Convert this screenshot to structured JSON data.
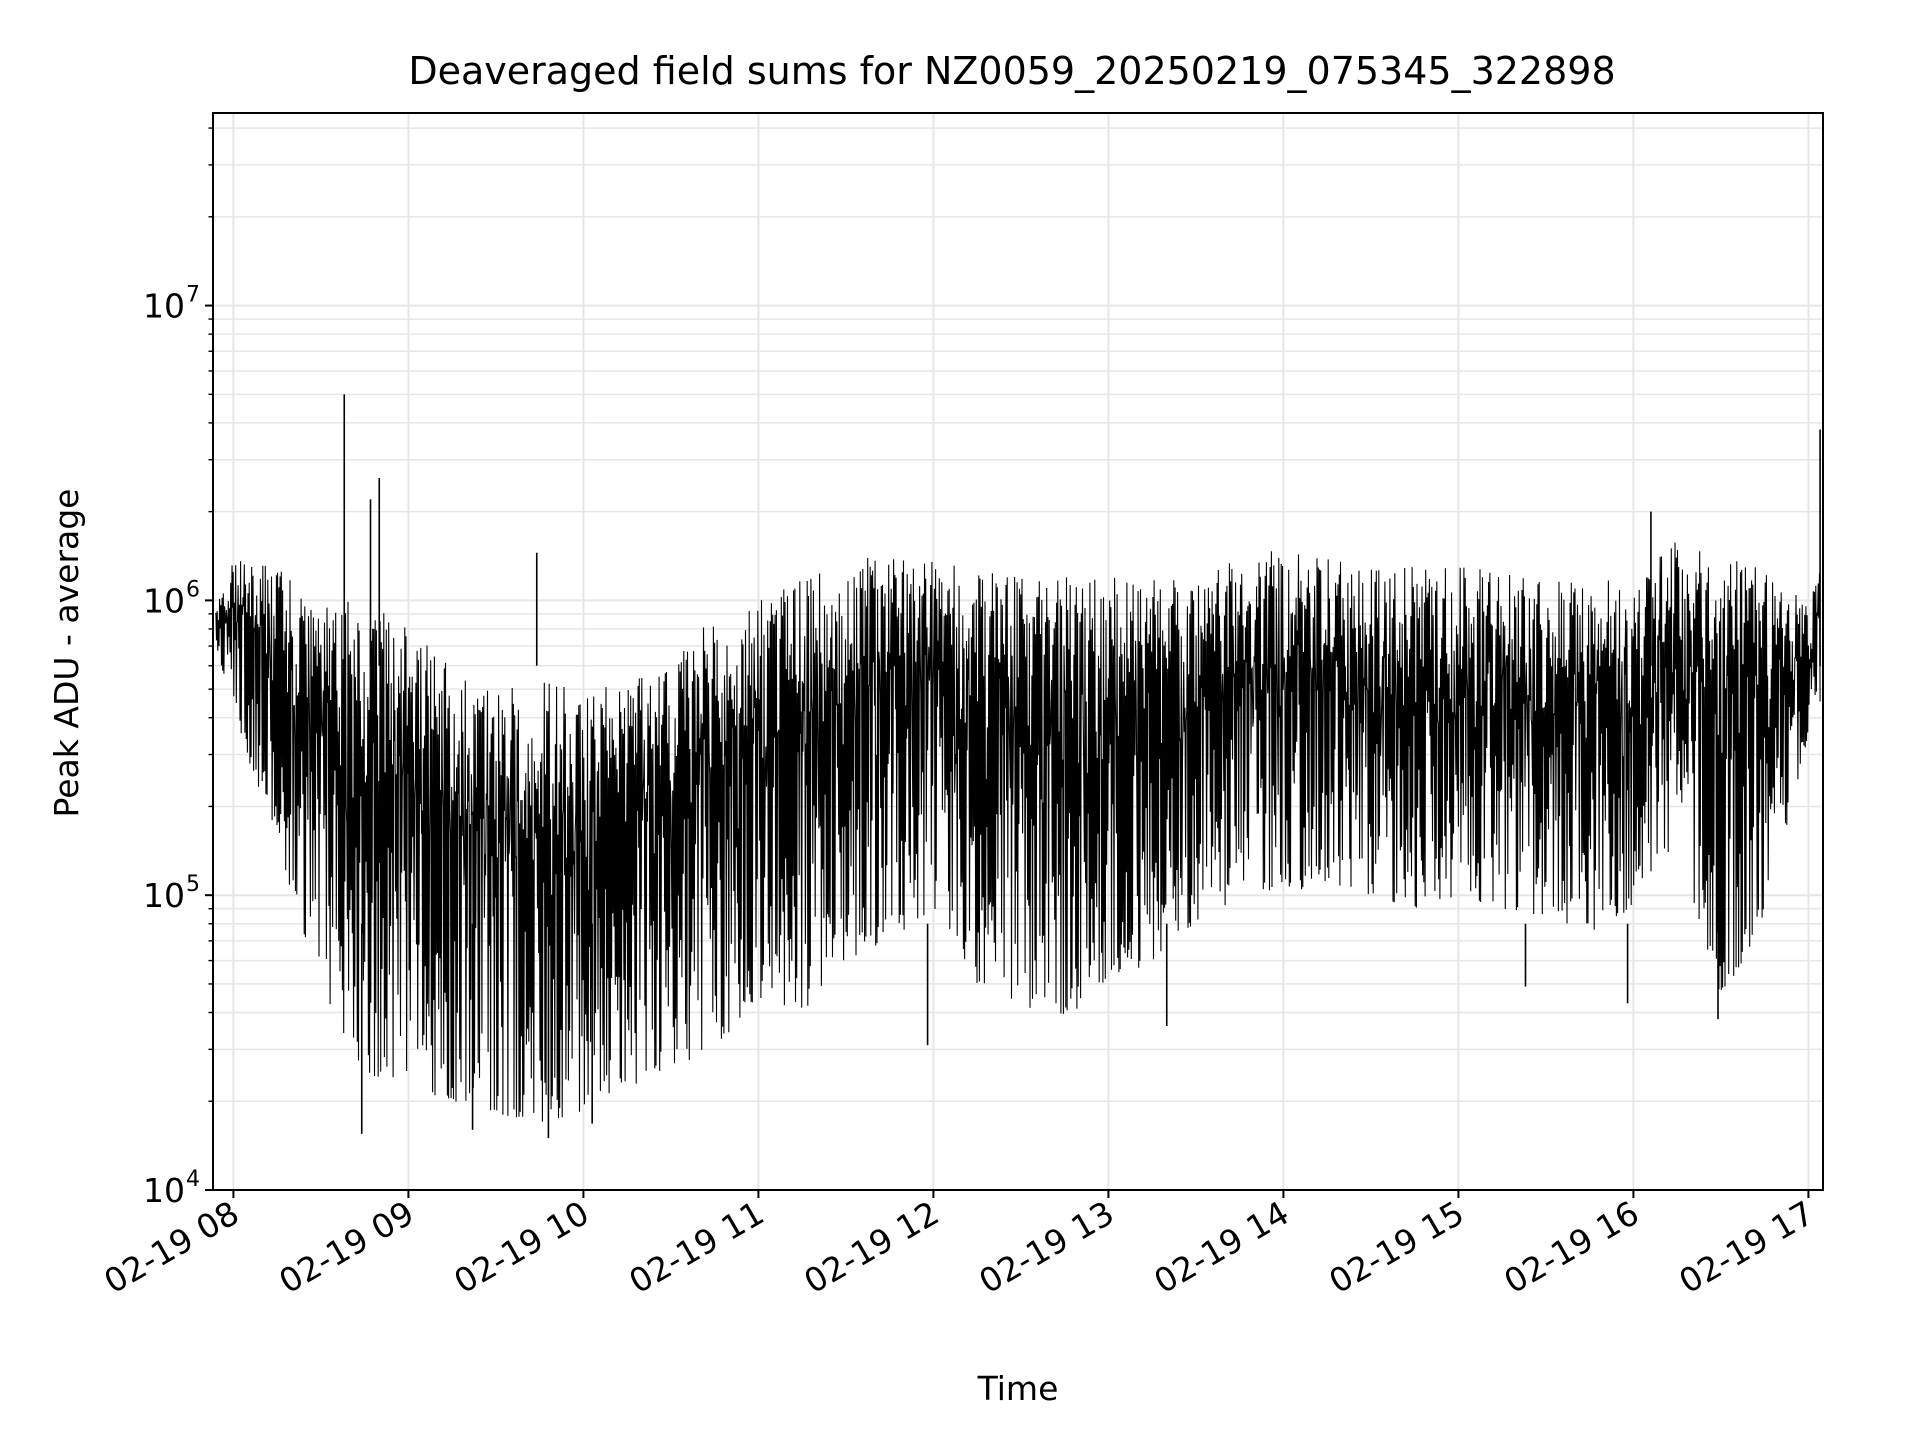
{
  "chart_data": {
    "type": "line",
    "title": "Deaveraged field sums for NZ0059_20250219_075345_322898",
    "xlabel": "Time",
    "ylabel": "Peak ADU - average",
    "yscale": "log",
    "ylim": [
      10000,
      45000000
    ],
    "xlim": [
      "2025-02-19 07:53",
      "2025-02-19 17:05"
    ],
    "grid": true,
    "line_color": "#000000",
    "x_ticks": [
      {
        "label": "02-19 08",
        "t": "2025-02-19 08:00"
      },
      {
        "label": "02-19 09",
        "t": "2025-02-19 09:00"
      },
      {
        "label": "02-19 10",
        "t": "2025-02-19 10:00"
      },
      {
        "label": "02-19 11",
        "t": "2025-02-19 11:00"
      },
      {
        "label": "02-19 12",
        "t": "2025-02-19 12:00"
      },
      {
        "label": "02-19 13",
        "t": "2025-02-19 13:00"
      },
      {
        "label": "02-19 14",
        "t": "2025-02-19 14:00"
      },
      {
        "label": "02-19 15",
        "t": "2025-02-19 15:00"
      },
      {
        "label": "02-19 16",
        "t": "2025-02-19 16:00"
      },
      {
        "label": "02-19 17",
        "t": "2025-02-19 17:00"
      }
    ],
    "y_ticks": [
      {
        "base": "10",
        "exp": "4",
        "value": 10000
      },
      {
        "base": "10",
        "exp": "5",
        "value": 100000
      },
      {
        "base": "10",
        "exp": "6",
        "value": 1000000
      },
      {
        "base": "10",
        "exp": "7",
        "value": 10000000
      }
    ],
    "series": [
      {
        "envelope": true,
        "x": [
          "2025-02-19 07:54",
          "2025-02-19 08:00",
          "2025-02-19 08:15",
          "2025-02-19 08:30",
          "2025-02-19 08:45",
          "2025-02-19 09:00",
          "2025-02-19 09:15",
          "2025-02-19 09:30",
          "2025-02-19 09:45",
          "2025-02-19 10:00",
          "2025-02-19 10:15",
          "2025-02-19 10:30",
          "2025-02-19 10:45",
          "2025-02-19 11:00",
          "2025-02-19 11:15",
          "2025-02-19 11:30",
          "2025-02-19 11:45",
          "2025-02-19 12:00",
          "2025-02-19 12:15",
          "2025-02-19 12:30",
          "2025-02-19 12:45",
          "2025-02-19 13:00",
          "2025-02-19 13:15",
          "2025-02-19 13:30",
          "2025-02-19 13:45",
          "2025-02-19 14:00",
          "2025-02-19 14:15",
          "2025-02-19 14:30",
          "2025-02-19 14:45",
          "2025-02-19 15:00",
          "2025-02-19 15:15",
          "2025-02-19 15:30",
          "2025-02-19 15:45",
          "2025-02-19 16:00",
          "2025-02-19 16:15",
          "2025-02-19 16:30",
          "2025-02-19 16:45",
          "2025-02-19 17:00",
          "2025-02-19 17:04"
        ],
        "low": [
          700000,
          400000,
          150000,
          45000,
          25000,
          22000,
          20000,
          18000,
          17000,
          18000,
          22000,
          26000,
          30000,
          45000,
          40000,
          60000,
          70000,
          90000,
          50000,
          40000,
          38000,
          50000,
          60000,
          80000,
          90000,
          100000,
          110000,
          100000,
          90000,
          100000,
          90000,
          85000,
          75000,
          90000,
          150000,
          45000,
          80000,
          350000,
          450000
        ],
        "high": [
          1000000,
          1400000,
          1300000,
          1000000,
          1000000,
          800000,
          600000,
          500000,
          550000,
          500000,
          550000,
          600000,
          900000,
          1000000,
          1200000,
          1400000,
          1400000,
          1400000,
          1300000,
          1200000,
          1200000,
          1200000,
          1200000,
          1300000,
          1400000,
          1500000,
          1400000,
          1300000,
          1300000,
          1300000,
          1300000,
          1200000,
          1200000,
          1200000,
          1600000,
          1400000,
          1300000,
          1000000,
          1300000
        ]
      }
    ],
    "spikes": [
      {
        "x": "2025-02-19 08:38",
        "y": 5000000
      },
      {
        "x": "2025-02-19 08:50",
        "y": 2600000
      },
      {
        "x": "2025-02-19 08:47",
        "y": 2200000
      },
      {
        "x": "2025-02-19 09:44",
        "y": 1450000
      },
      {
        "x": "2025-02-19 16:06",
        "y": 2000000
      },
      {
        "x": "2025-02-19 17:04",
        "y": 3800000
      },
      {
        "x": "2025-02-19 08:44",
        "y": 15500
      },
      {
        "x": "2025-02-19 09:48",
        "y": 15000
      },
      {
        "x": "2025-02-19 09:22",
        "y": 16000
      },
      {
        "x": "2025-02-19 10:03",
        "y": 16800
      },
      {
        "x": "2025-02-19 11:58",
        "y": 31000
      },
      {
        "x": "2025-02-19 13:20",
        "y": 36000
      },
      {
        "x": "2025-02-19 15:23",
        "y": 49000
      },
      {
        "x": "2025-02-19 15:58",
        "y": 43000
      },
      {
        "x": "2025-02-19 16:29",
        "y": 38000
      }
    ]
  }
}
